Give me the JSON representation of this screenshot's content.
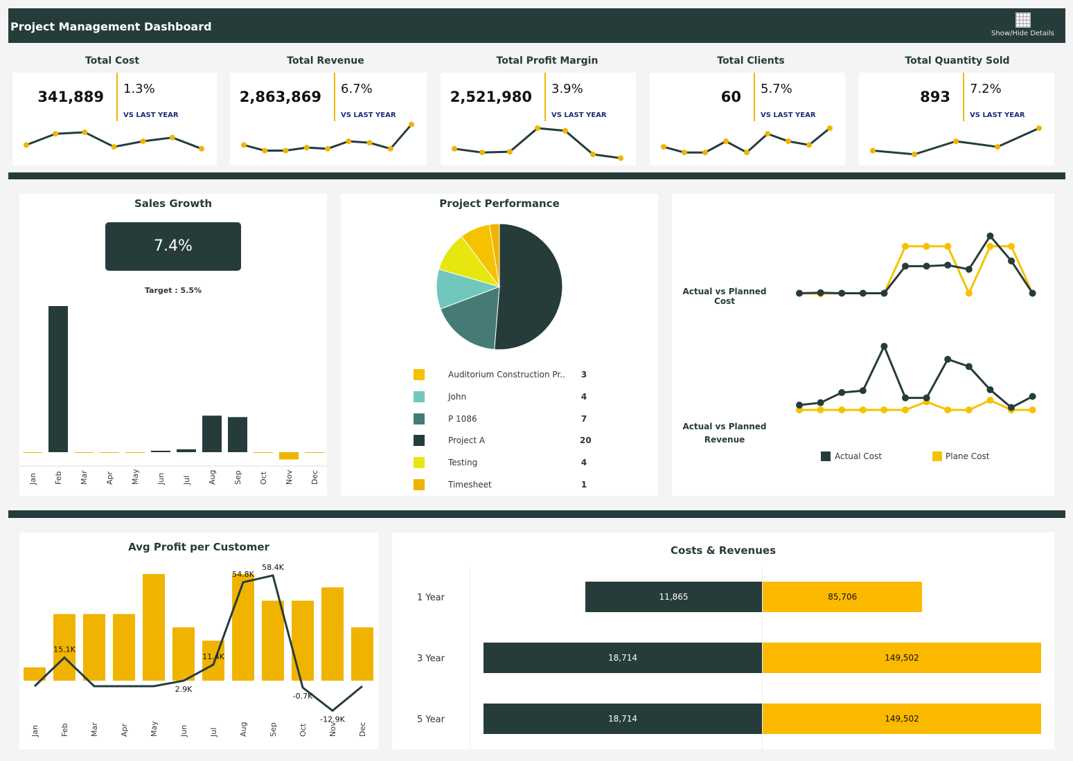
{
  "header": {
    "title": "Project Management Dashboard",
    "toggle_label": "Show/Hide Details"
  },
  "colors": {
    "dark": "#253c3a",
    "gold": "#f0b400",
    "teal_mid": "#457b74",
    "aqua": "#72c7bd",
    "yellow": "#e7e60f",
    "gold2": "#f5c200"
  },
  "kpis": [
    {
      "title": "Total Cost",
      "value": "341,889",
      "pct": "1.3%",
      "vs": "VS LAST YEAR",
      "spark": [
        4,
        7,
        7.4,
        3.5,
        5,
        6,
        3
      ]
    },
    {
      "title": "Total Revenue",
      "value": "2,863,869",
      "pct": "6.7%",
      "vs": "VS LAST YEAR",
      "spark": [
        4,
        2.5,
        2.5,
        3.3,
        3,
        5,
        4.6,
        3,
        9.5
      ]
    },
    {
      "title": "Total Profit Margin",
      "value": "2,521,980",
      "pct": "3.9%",
      "vs": "VS LAST YEAR",
      "spark": [
        3,
        2,
        2.2,
        8.5,
        7.8,
        1.5,
        0.5
      ]
    },
    {
      "title": "Total Clients",
      "value": "60",
      "pct": "5.7%",
      "vs": "VS LAST YEAR",
      "spark": [
        3.5,
        2,
        2,
        5,
        2,
        7,
        5,
        4,
        8.5
      ]
    },
    {
      "title": "Total Quantity Sold",
      "value": "893",
      "pct": "7.2%",
      "vs": "VS LAST YEAR",
      "spark": [
        2.5,
        1.5,
        5,
        3.5,
        8.5
      ]
    }
  ],
  "sales_growth": {
    "title": "Sales Growth",
    "value": "7.4%",
    "target": "Target : 5.5%"
  },
  "project_performance": {
    "title": "Project Performance",
    "items": [
      {
        "name": "Auditorium Construction Pr..",
        "count": "3",
        "color": "#f5c200"
      },
      {
        "name": "John",
        "count": "4",
        "color": "#72c7bd"
      },
      {
        "name": "P 1086",
        "count": "7",
        "color": "#457b74"
      },
      {
        "name": "Project A",
        "count": "20",
        "color": "#253c3a"
      },
      {
        "name": "Testing",
        "count": "4",
        "color": "#e7e60f"
      },
      {
        "name": "Timesheet",
        "count": "1",
        "color": "#f0b400"
      }
    ]
  },
  "actual_vs": {
    "cost_label": "Actual vs Planned Cost",
    "revenue_label": "Actual vs Planned Revenue",
    "legend_actual": "Actual Cost",
    "legend_plan": "Plane Cost"
  },
  "avg_profit": {
    "title": "Avg Profit per Customer"
  },
  "costs_revenues": {
    "title": "Costs & Revenues",
    "rows": [
      {
        "label": "1 Year",
        "cost": 11865,
        "revenue": 85706,
        "cost_text": "11,865",
        "revenue_text": "85,706"
      },
      {
        "label": "3 Year",
        "cost": 18714,
        "revenue": 149502,
        "cost_text": "18,714",
        "revenue_text": "149,502"
      },
      {
        "label": "5 Year",
        "cost": 18714,
        "revenue": 149502,
        "cost_text": "18,714",
        "revenue_text": "149,502"
      }
    ]
  },
  "chart_data": [
    {
      "type": "bar",
      "title": "Sales Growth",
      "categories": [
        "Jan",
        "Feb",
        "Mar",
        "Apr",
        "May",
        "Jun",
        "Jul",
        "Aug",
        "Sep",
        "Oct",
        "Nov",
        "Dec"
      ],
      "values": [
        0,
        100,
        0,
        0,
        0,
        1,
        2,
        25,
        24,
        0,
        -5,
        0
      ],
      "ylim": [
        -8,
        100
      ]
    },
    {
      "type": "pie",
      "title": "Project Performance",
      "labels": [
        "Project A",
        "P 1086",
        "John",
        "Testing",
        "Auditorium Construction Pr..",
        "Timesheet"
      ],
      "values": [
        20,
        7,
        4,
        4,
        3,
        1
      ]
    },
    {
      "type": "line",
      "title": "Actual vs Planned Cost",
      "x": [
        1,
        2,
        3,
        4,
        5,
        6,
        7,
        8,
        9,
        10,
        11,
        12
      ],
      "series": [
        {
          "name": "Actual Cost",
          "values": [
            1.0,
            1.1,
            1.0,
            1.0,
            1.0,
            6.2,
            6.2,
            6.4,
            5.6,
            12.0,
            7.2,
            1.0
          ]
        },
        {
          "name": "Plane Cost",
          "values": [
            1.0,
            0.9,
            1.0,
            1.0,
            1.0,
            10.0,
            10.0,
            10.0,
            1.0,
            10.0,
            10.0,
            1.0
          ]
        }
      ]
    },
    {
      "type": "line",
      "title": "Actual vs Planned Revenue",
      "x": [
        1,
        2,
        3,
        4,
        5,
        6,
        7,
        8,
        9,
        10,
        11,
        12
      ],
      "series": [
        {
          "name": "Actual Cost",
          "values": [
            1.0,
            1.5,
            3.6,
            4.0,
            13.2,
            2.5,
            2.5,
            10.5,
            9.0,
            4.2,
            0.5,
            2.8
          ]
        },
        {
          "name": "Plane Cost",
          "values": [
            0.0,
            0.0,
            0.0,
            0.0,
            0.0,
            0.0,
            1.7,
            0.0,
            0.0,
            2.0,
            0.0,
            0.0
          ]
        }
      ]
    },
    {
      "type": "bar",
      "title": "Avg Profit per Customer",
      "categories": [
        "Jan",
        "Feb",
        "Mar",
        "Apr",
        "May",
        "Jun",
        "Jul",
        "Aug",
        "Sep",
        "Oct",
        "Nov",
        "Dec"
      ],
      "bar_values": [
        10,
        50,
        50,
        50,
        80,
        40,
        30,
        80,
        60,
        60,
        70,
        40
      ],
      "line_values": [
        0,
        15.1,
        0,
        0,
        0,
        2.9,
        11.4,
        54.8,
        58.4,
        -0.7,
        -12.9,
        0
      ],
      "line_labels": [
        "",
        "15.1K",
        "",
        "",
        "",
        "2.9K",
        "11.4K",
        "54.8K",
        "58.4K",
        "-0.7K",
        "-12.9K",
        ""
      ],
      "ylim": [
        -20,
        70
      ]
    },
    {
      "type": "bar",
      "title": "Costs & Revenues",
      "categories": [
        "1 Year",
        "3 Year",
        "5 Year"
      ],
      "series": [
        {
          "name": "Cost",
          "values": [
            11865,
            18714,
            18714
          ]
        },
        {
          "name": "Revenue",
          "values": [
            85706,
            149502,
            149502
          ]
        }
      ]
    }
  ]
}
